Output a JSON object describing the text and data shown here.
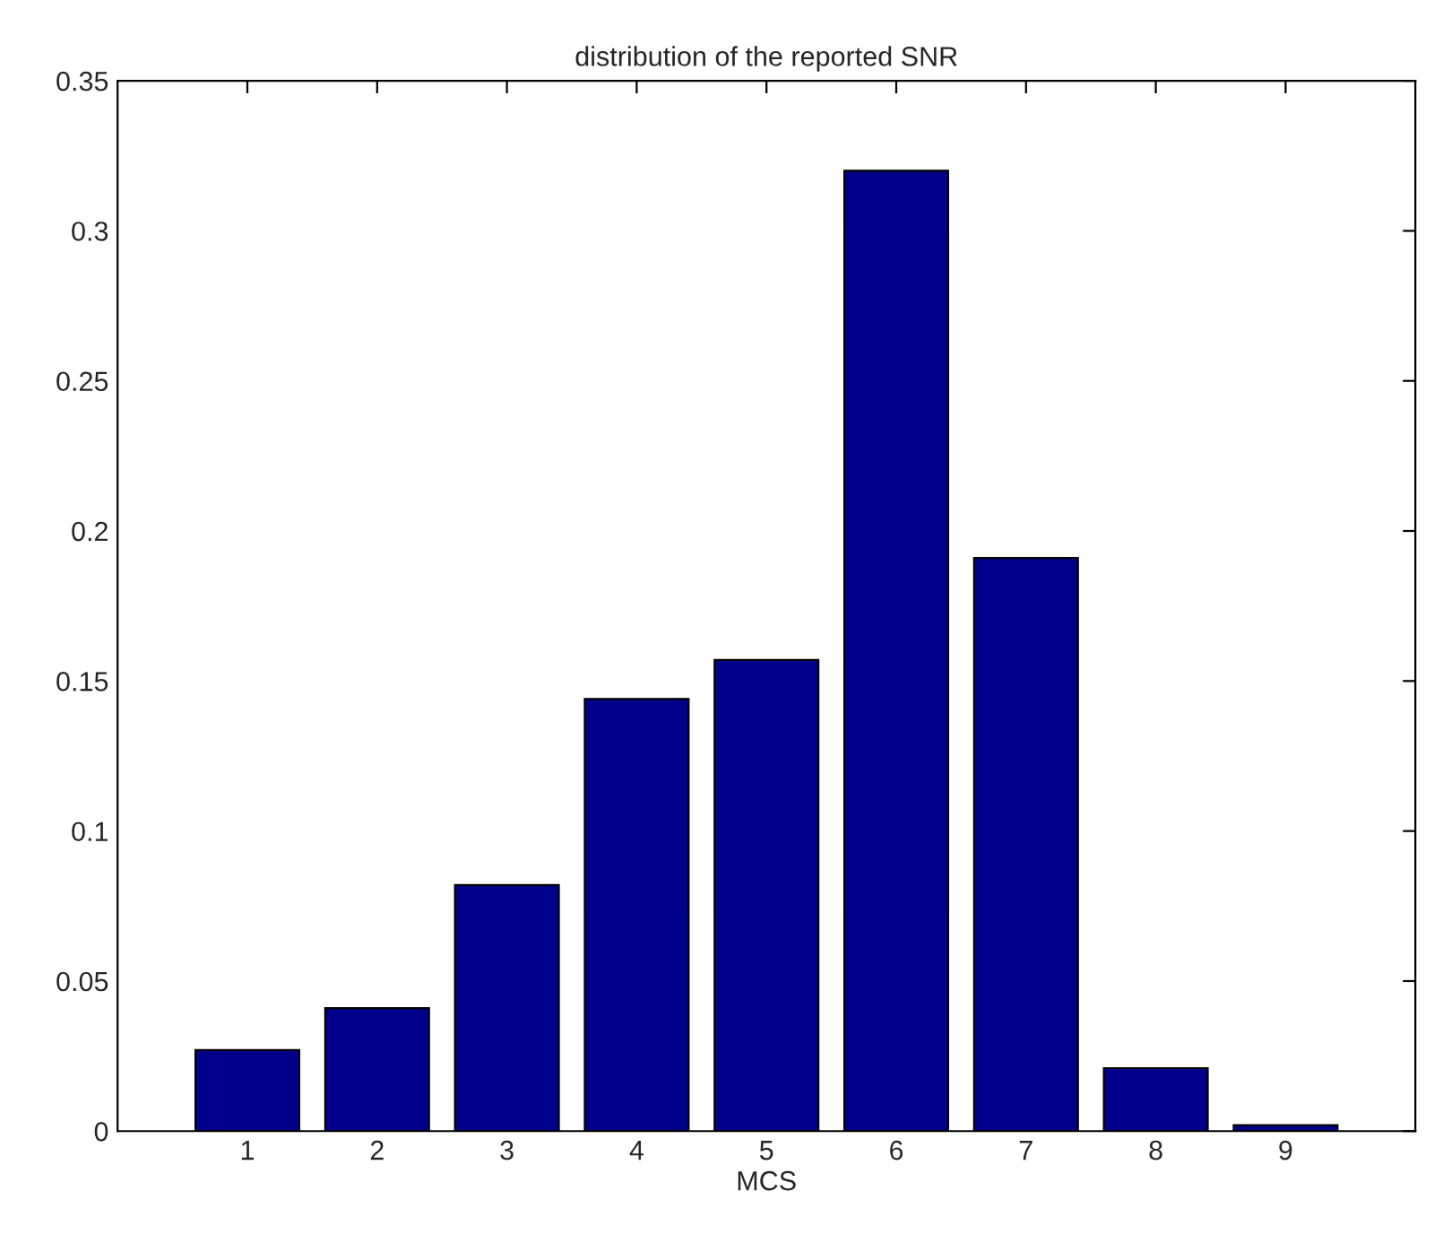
{
  "chart_data": {
    "type": "bar",
    "title": "distribution of the reported SNR",
    "xlabel": "MCS",
    "x": [
      1,
      2,
      3,
      4,
      5,
      6,
      7,
      8,
      9
    ],
    "values": [
      0.027,
      0.041,
      0.082,
      0.144,
      0.157,
      0.32,
      0.191,
      0.021,
      0.002
    ],
    "color": "#00008b",
    "xlim": [
      0,
      10
    ],
    "xticks": [
      1,
      2,
      3,
      4,
      5,
      6,
      7,
      8,
      9
    ],
    "ylim": [
      0,
      0.35
    ],
    "yticks": [
      0,
      0.05,
      0.1,
      0.15,
      0.2,
      0.25,
      0.3,
      0.35
    ],
    "grid": false
  }
}
